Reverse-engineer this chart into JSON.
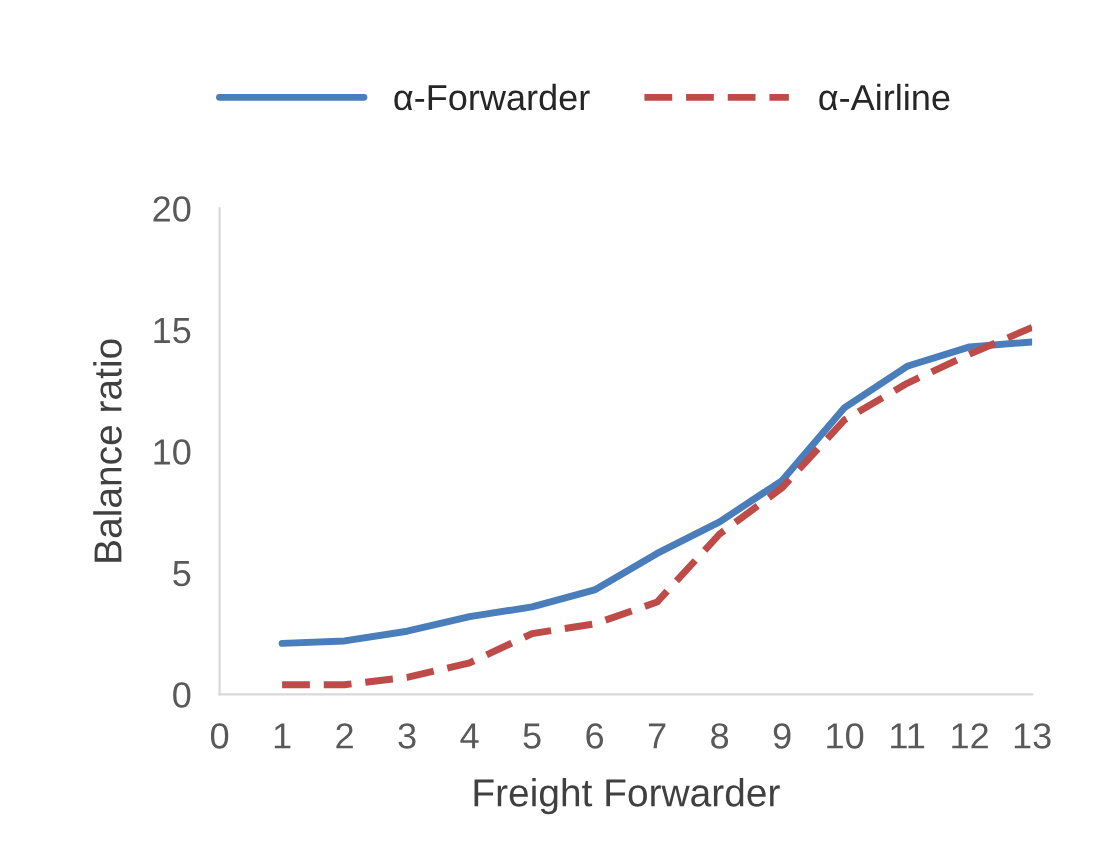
{
  "chart_data": {
    "type": "line",
    "xlabel": "Freight Forwarder",
    "ylabel": "Balance ratio",
    "x": [
      1,
      2,
      3,
      4,
      5,
      6,
      7,
      8,
      9,
      10,
      11,
      12,
      13
    ],
    "series": [
      {
        "name": "α-Forwarder",
        "color": "#4a7ebb",
        "line_style": "solid",
        "values": [
          2.1,
          2.2,
          2.6,
          3.2,
          3.6,
          4.3,
          5.8,
          7.1,
          8.8,
          11.8,
          13.5,
          14.3,
          14.5
        ]
      },
      {
        "name": "α-Airline",
        "color": "#be4b48",
        "line_style": "dashed",
        "values": [
          0.4,
          0.4,
          0.7,
          1.3,
          2.5,
          2.9,
          3.8,
          6.6,
          8.5,
          11.3,
          12.8,
          14.0,
          15.1
        ]
      }
    ],
    "xlim": [
      0,
      13
    ],
    "xticks": [
      0,
      1,
      2,
      3,
      4,
      5,
      6,
      7,
      8,
      9,
      10,
      11,
      12,
      13
    ],
    "ylim": [
      0,
      20
    ],
    "yticks": [
      0,
      5,
      10,
      15,
      20
    ],
    "grid": false,
    "legend": "top",
    "marker": "none"
  }
}
